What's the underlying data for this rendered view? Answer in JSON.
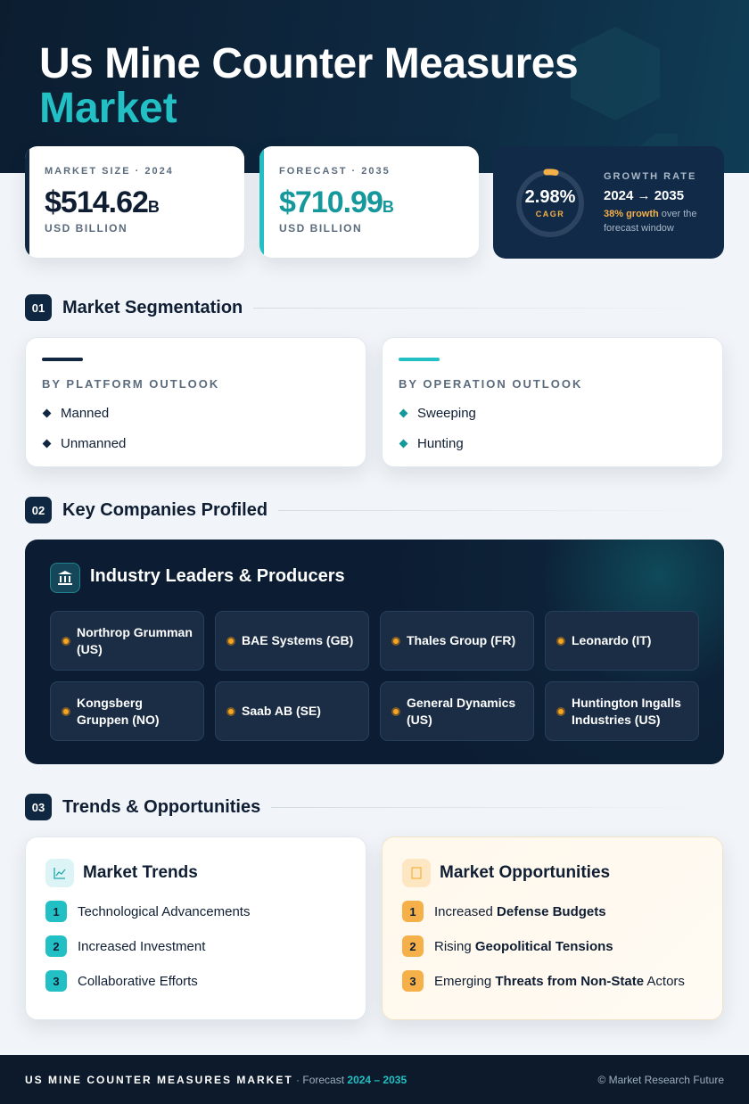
{
  "header": {
    "title_line1": "Us Mine Counter Measures",
    "title_line2": "Market"
  },
  "stats": [
    {
      "label": "MARKET SIZE · 2024",
      "value": "$514.62",
      "unit": "B",
      "caption": "USD BILLION"
    },
    {
      "label": "FORECAST · 2035",
      "value": "$710.99",
      "unit": "B",
      "caption": "USD BILLION"
    }
  ],
  "growth": {
    "rate": "2.98%",
    "rate_label": "CAGR",
    "label": "GROWTH RATE",
    "period": "2024 → 2035",
    "highlight": "38% growth",
    "note": "over the forecast window"
  },
  "sections": [
    {
      "number": "01",
      "title": "Market Segmentation"
    },
    {
      "number": "02",
      "title": "Key Companies Profiled"
    },
    {
      "number": "03",
      "title": "Trends & Opportunities"
    }
  ],
  "segmentation": [
    {
      "title": "BY PLATFORM OUTLOOK",
      "items": [
        "Manned",
        "Unmanned"
      ]
    },
    {
      "title": "BY OPERATION OUTLOOK",
      "items": [
        "Sweeping",
        "Hunting"
      ]
    }
  ],
  "companies": {
    "title": "Industry Leaders & Producers",
    "items": [
      "Northrop Grumman (US)",
      "BAE Systems (GB)",
      "Thales Group (FR)",
      "Leonardo (IT)",
      "Kongsberg Gruppen (NO)",
      "Saab AB (SE)",
      "General Dynamics (US)",
      "Huntington Ingalls Industries (US)"
    ]
  },
  "trends": {
    "title": "Market Trends",
    "items": [
      {
        "number": "1",
        "text": "Technological Advancements"
      },
      {
        "number": "2",
        "text": "Increased Investment"
      },
      {
        "number": "3",
        "text": "Collaborative Efforts"
      }
    ]
  },
  "opportunities": {
    "title": "Market Opportunities",
    "items": [
      {
        "number": "1",
        "prefix": "Increased",
        "bold": "Defense Budgets"
      },
      {
        "number": "2",
        "prefix": "Rising",
        "bold": "Geopolitical Tensions"
      },
      {
        "number": "3",
        "prefix": "Emerging",
        "bold": "Threats from Non-State",
        "suffix": "Actors"
      }
    ]
  },
  "footer": {
    "title": "US MINE COUNTER MEASURES MARKET",
    "separator": "· Forecast",
    "period": "2024 – 2035",
    "credit": "© Market Research Future"
  }
}
